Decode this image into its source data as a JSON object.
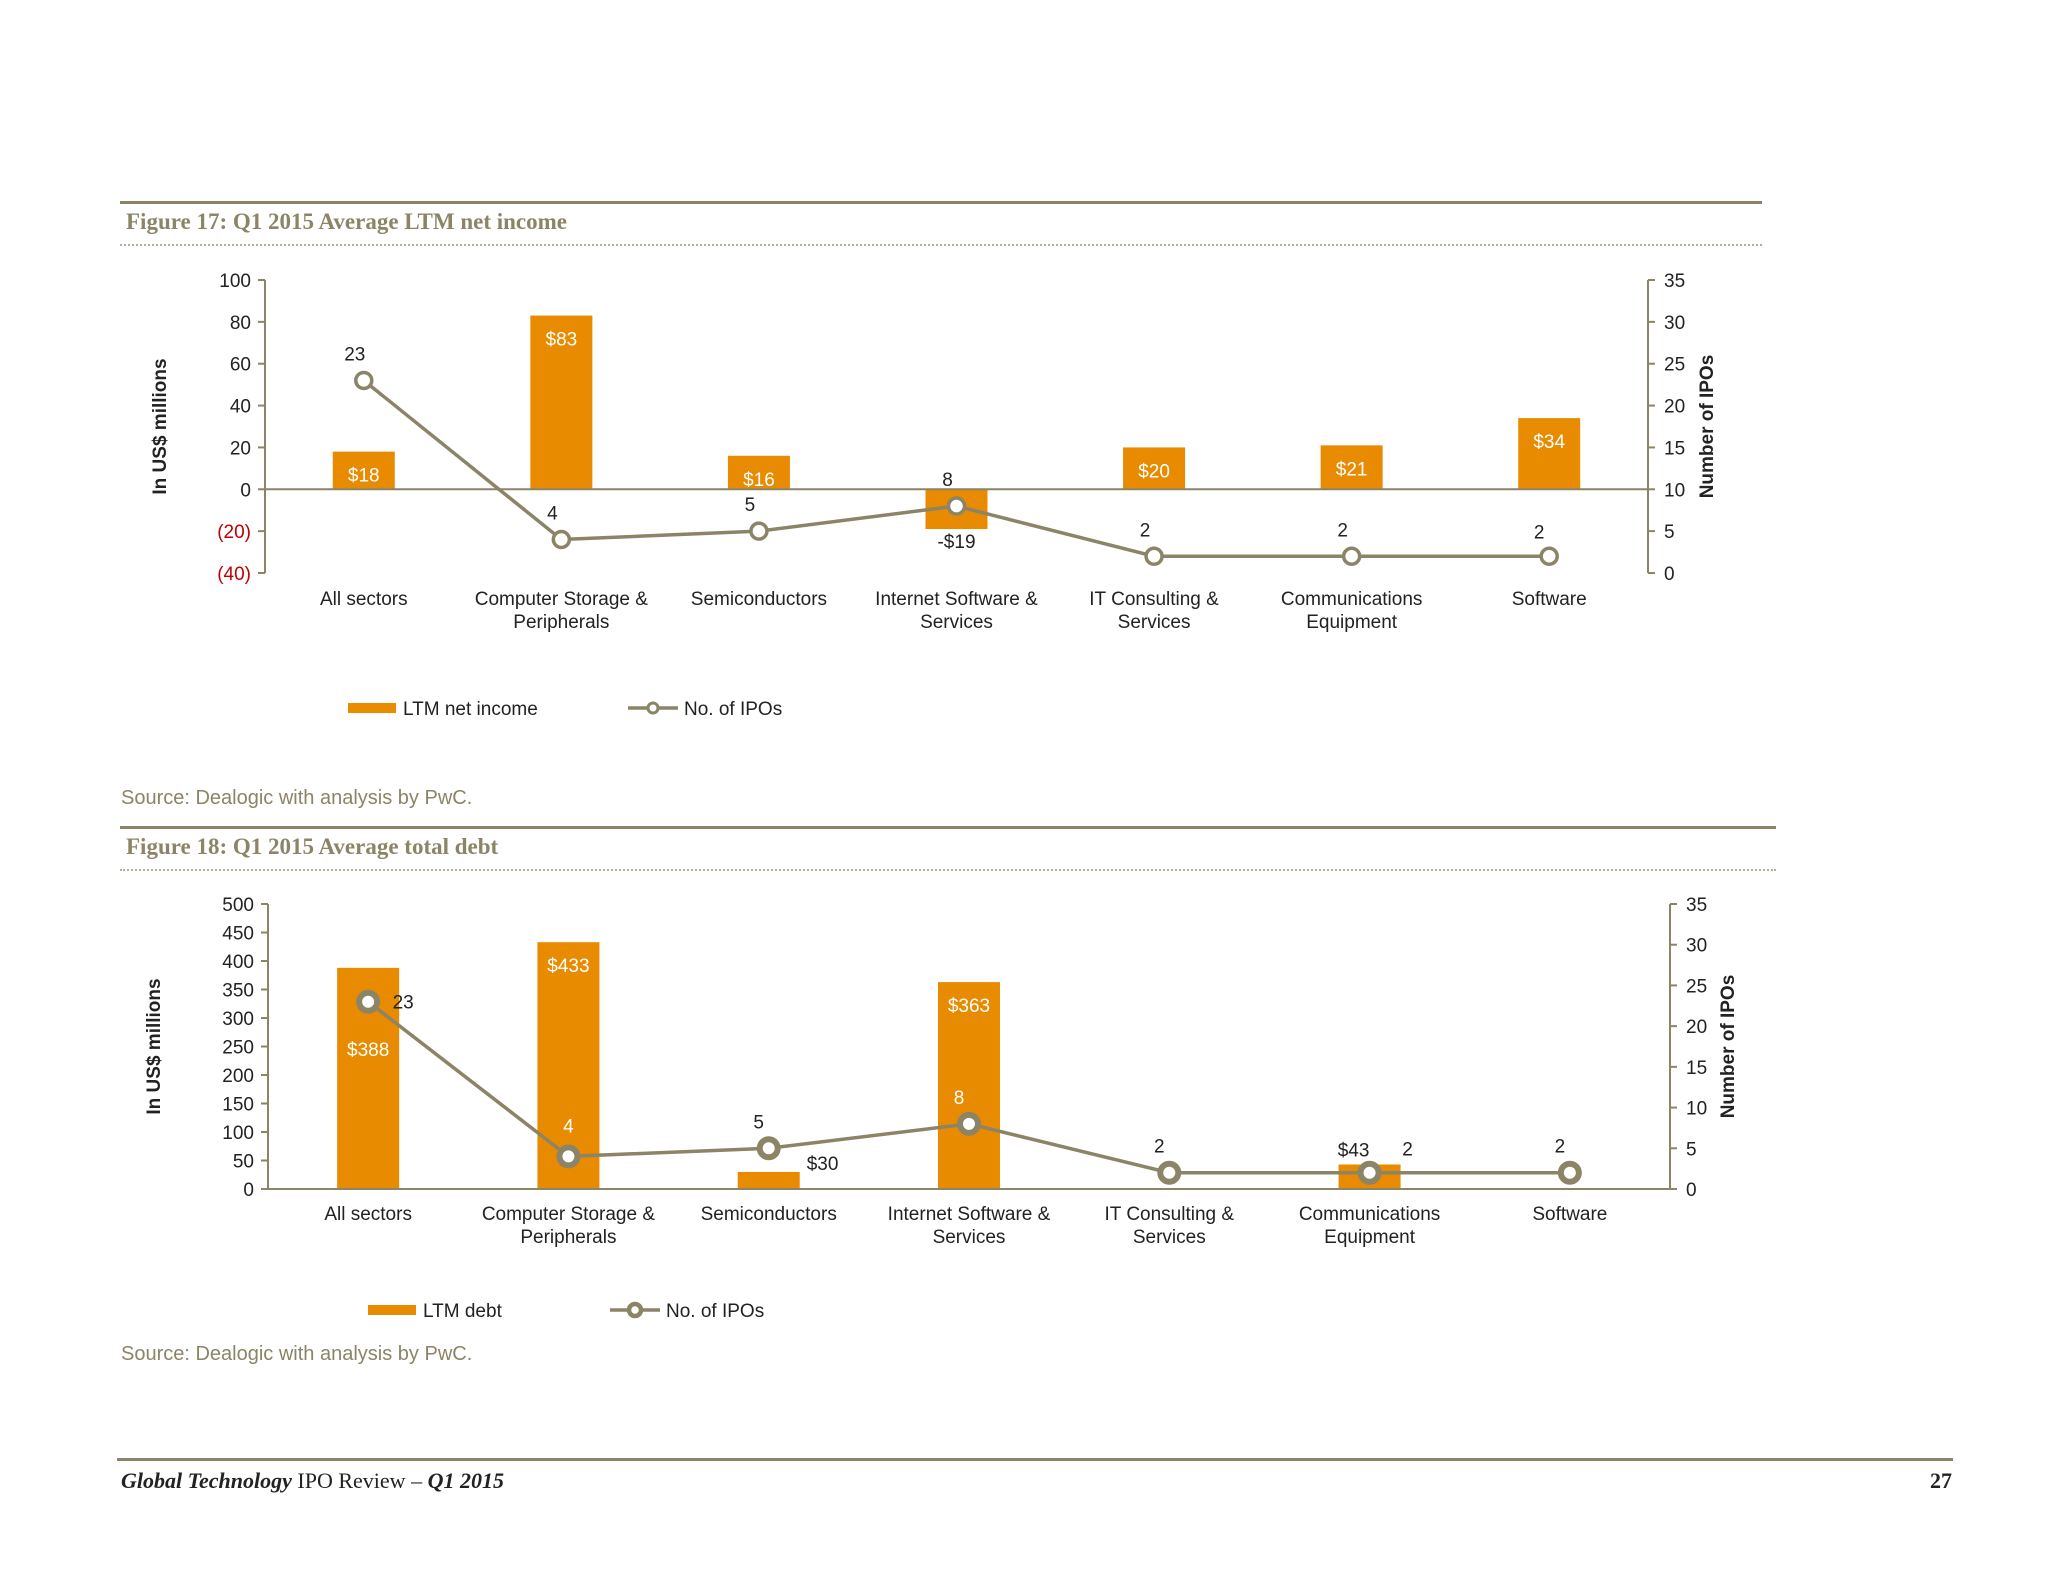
{
  "colors": {
    "bar": "#E88B00",
    "line": "#8C8466",
    "negative": "#C00000",
    "text": "#222222",
    "muted": "#8C8466"
  },
  "figures": [
    {
      "title": "Figure 17: Q1 2015 Average LTM net income",
      "source": "Source: Dealogic with analysis by PwC."
    },
    {
      "title": "Figure 18: Q1 2015 Average total debt",
      "source": "Source: Dealogic with analysis by PwC."
    }
  ],
  "footer": {
    "title_italic": "Global Technology",
    "title_rest": " IPO Review – ",
    "quarter": "Q1 2015",
    "page_number": "27"
  },
  "chart_data": [
    {
      "type": "bar",
      "categories": [
        [
          "All sectors"
        ],
        [
          "Computer Storage &",
          "Peripherals"
        ],
        [
          "Semiconductors"
        ],
        [
          "Internet Software &",
          "Services"
        ],
        [
          "IT Consulting &",
          "Services"
        ],
        [
          "Communications",
          "Equipment"
        ],
        [
          "Software"
        ]
      ],
      "series": [
        {
          "name": "LTM net income",
          "type": "bar",
          "axis": "left",
          "values": [
            18,
            83,
            16,
            -19,
            20,
            21,
            34
          ],
          "labels": [
            "$18",
            "$83",
            "$16",
            "-$19",
            "$20",
            "$21",
            "$34"
          ]
        },
        {
          "name": "No. of IPOs",
          "type": "line",
          "axis": "right",
          "values": [
            23,
            4,
            5,
            8,
            2,
            2,
            2
          ],
          "labels": [
            "23",
            "4",
            "5",
            "8",
            "2",
            "2",
            "2"
          ]
        }
      ],
      "ylabel": "In US$ millions",
      "y2label": "Number of IPOs",
      "ylim": [
        -40,
        100
      ],
      "yticks": [
        -40,
        -20,
        0,
        20,
        40,
        60,
        80,
        100
      ],
      "yticklabels": [
        "(40)",
        "(20)",
        "0",
        "20",
        "40",
        "60",
        "80",
        "100"
      ],
      "y2lim": [
        0,
        35
      ],
      "y2ticks": [
        0,
        5,
        10,
        15,
        20,
        25,
        30,
        35
      ],
      "legend": "bottom-left",
      "grid": false
    },
    {
      "type": "bar",
      "categories": [
        [
          "All sectors"
        ],
        [
          "Computer Storage &",
          "Peripherals"
        ],
        [
          "Semiconductors"
        ],
        [
          "Internet Software &",
          "Services"
        ],
        [
          "IT Consulting &",
          "Services"
        ],
        [
          "Communications",
          "Equipment"
        ],
        [
          "Software"
        ]
      ],
      "series": [
        {
          "name": "LTM debt",
          "type": "bar",
          "axis": "left",
          "values": [
            388,
            433,
            30,
            363,
            0,
            43,
            0
          ],
          "labels": [
            "$388",
            "$433",
            "$30",
            "$363",
            "",
            "$43",
            ""
          ]
        },
        {
          "name": "No. of IPOs",
          "type": "line",
          "axis": "right",
          "values": [
            23,
            4,
            5,
            8,
            2,
            2,
            2
          ],
          "labels": [
            "23",
            "4",
            "5",
            "8",
            "2",
            "2",
            "2"
          ]
        }
      ],
      "ylabel": "In US$ millions",
      "y2label": "Number of IPOs",
      "ylim": [
        0,
        500
      ],
      "yticks": [
        0,
        50,
        100,
        150,
        200,
        250,
        300,
        350,
        400,
        450,
        500
      ],
      "yticklabels": [
        "0",
        "50",
        "100",
        "150",
        "200",
        "250",
        "300",
        "350",
        "400",
        "450",
        "500"
      ],
      "y2lim": [
        0,
        35
      ],
      "y2ticks": [
        0,
        5,
        10,
        15,
        20,
        25,
        30,
        35
      ],
      "legend": "bottom-left",
      "grid": false
    }
  ]
}
